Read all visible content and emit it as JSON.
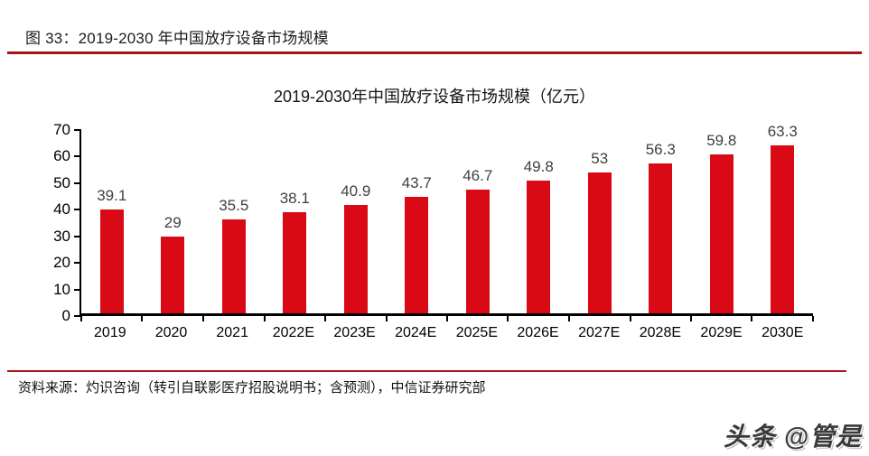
{
  "header": {
    "caption": "图 33：2019-2030 年中国放疗设备市场规模"
  },
  "chart_data": {
    "type": "bar",
    "title": "2019-2030年中国放疗设备市场规模（亿元）",
    "categories": [
      "2019",
      "2020",
      "2021",
      "2022E",
      "2023E",
      "2024E",
      "2025E",
      "2026E",
      "2027E",
      "2028E",
      "2029E",
      "2030E"
    ],
    "values": [
      39.1,
      29,
      35.5,
      38.1,
      40.9,
      43.7,
      46.7,
      49.8,
      53,
      56.3,
      59.8,
      63.3
    ],
    "value_labels": [
      "39.1",
      "29",
      "35.5",
      "38.1",
      "40.9",
      "43.7",
      "46.7",
      "49.8",
      "53",
      "56.3",
      "59.8",
      "63.3"
    ],
    "xlabel": "",
    "ylabel": "",
    "ylim": [
      0,
      70
    ],
    "yticks": [
      0,
      10,
      20,
      30,
      40,
      50,
      60,
      70
    ],
    "grid": false,
    "legend": "none",
    "bar_color": "#d90a15",
    "value_label_color": "#404040"
  },
  "footer": {
    "source": "资料来源：灼识咨询（转引自联影医疗招股说明书；含预测），中信证券研究部",
    "watermark": "头条 @管是"
  },
  "colors": {
    "rule_red": "#a3131a",
    "axis_black": "#000000"
  }
}
